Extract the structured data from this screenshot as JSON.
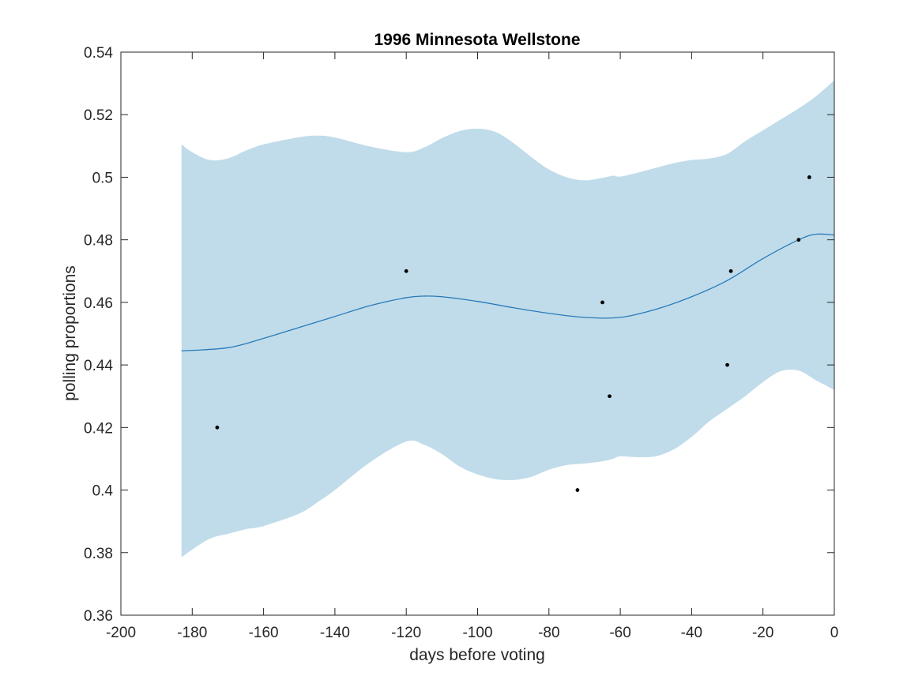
{
  "chart_data": {
    "type": "line",
    "title": "1996 Minnesota Wellstone",
    "xlabel": "days before voting",
    "ylabel": "polling proportions",
    "xlim": [
      -200,
      0
    ],
    "ylim": [
      0.36,
      0.54
    ],
    "xticks": [
      -200,
      -180,
      -160,
      -140,
      -120,
      -100,
      -80,
      -60,
      -40,
      -20,
      0
    ],
    "yticks": [
      0.36,
      0.38,
      0.4,
      0.42,
      0.44,
      0.46,
      0.48,
      0.5,
      0.52,
      0.54
    ],
    "xtick_labels": [
      "-200",
      "-180",
      "-160",
      "-140",
      "-120",
      "-100",
      "-80",
      "-60",
      "-40",
      "-20",
      "0"
    ],
    "ytick_labels": [
      "0.36",
      "0.38",
      "0.4",
      "0.42",
      "0.44",
      "0.46",
      "0.48",
      "0.5",
      "0.52",
      "0.54"
    ],
    "grid": false,
    "box": true,
    "colors": {
      "band": "#c0dcea",
      "line": "#2a7ab9",
      "points": "#000000",
      "axes": "#262626"
    },
    "series": [
      {
        "role": "polls",
        "kind": "scatter",
        "x": [
          -173,
          -120,
          -72,
          -65,
          -63,
          -30,
          -29,
          -10,
          -7
        ],
        "y": [
          0.42,
          0.47,
          0.4,
          0.46,
          0.43,
          0.44,
          0.47,
          0.48,
          0.5
        ]
      },
      {
        "role": "mean",
        "kind": "line",
        "x": [
          -183,
          -170,
          -160,
          -150,
          -140,
          -130,
          -120,
          -115,
          -110,
          -100,
          -90,
          -80,
          -70,
          -60,
          -50,
          -40,
          -30,
          -20,
          -10,
          -5,
          0
        ],
        "y": [
          0.4445,
          0.4455,
          0.4485,
          0.452,
          0.4555,
          0.459,
          0.4615,
          0.462,
          0.4618,
          0.4603,
          0.4583,
          0.4565,
          0.4552,
          0.4552,
          0.4578,
          0.4618,
          0.467,
          0.474,
          0.48,
          0.4818,
          0.4815
        ]
      },
      {
        "role": "band",
        "kind": "area",
        "x": [
          -183,
          -180,
          -175,
          -170,
          -165,
          -160,
          -150,
          -145,
          -140,
          -130,
          -120,
          -115,
          -110,
          -105,
          -100,
          -95,
          -90,
          -85,
          -80,
          -75,
          -70,
          -65,
          -62,
          -60,
          -55,
          -50,
          -45,
          -40,
          -35,
          -30,
          -25,
          -20,
          -15,
          -10,
          -5,
          0
        ],
        "upper": [
          0.5105,
          0.508,
          0.5055,
          0.506,
          0.5085,
          0.5105,
          0.5128,
          0.5133,
          0.5127,
          0.5098,
          0.508,
          0.5095,
          0.5125,
          0.5148,
          0.5155,
          0.5145,
          0.511,
          0.5065,
          0.5025,
          0.5,
          0.499,
          0.4998,
          0.5005,
          0.5002,
          0.5015,
          0.503,
          0.5045,
          0.5055,
          0.506,
          0.5075,
          0.5115,
          0.515,
          0.5185,
          0.522,
          0.526,
          0.531
        ],
        "lower": [
          0.3785,
          0.381,
          0.3845,
          0.386,
          0.3875,
          0.3885,
          0.3925,
          0.396,
          0.4,
          0.409,
          0.4155,
          0.4145,
          0.4115,
          0.4075,
          0.405,
          0.4035,
          0.4032,
          0.4042,
          0.4065,
          0.408,
          0.4085,
          0.4092,
          0.41,
          0.4108,
          0.4105,
          0.4108,
          0.413,
          0.417,
          0.422,
          0.426,
          0.43,
          0.4345,
          0.438,
          0.4382,
          0.435,
          0.432
        ]
      }
    ]
  }
}
